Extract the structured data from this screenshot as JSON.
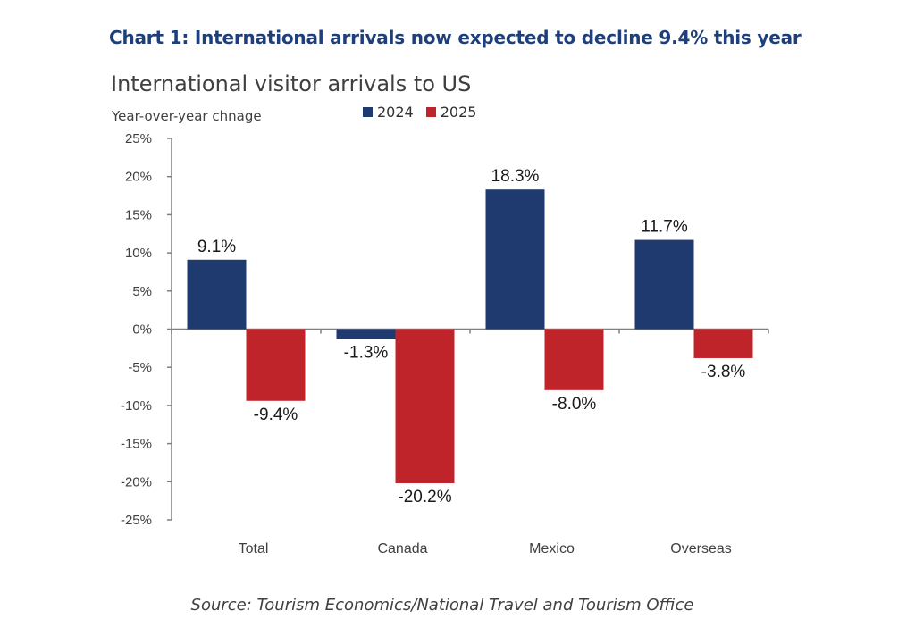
{
  "heading": "Chart 1: International arrivals now expected to decline 9.4% this year",
  "source": "Source: Tourism Economics/National Travel and Tourism Office",
  "colors": {
    "series_2024": "#1f3a6e",
    "series_2025": "#c0242b",
    "axis": "#7f7f7f"
  },
  "chart_data": {
    "type": "bar",
    "title": "International visitor arrivals to US",
    "ylabel": "Year-over-year chnage",
    "xlabel": "",
    "categories": [
      "Total",
      "Canada",
      "Mexico",
      "Overseas"
    ],
    "series": [
      {
        "name": "2024",
        "values": [
          9.1,
          -1.3,
          18.3,
          11.7
        ],
        "labels": [
          "9.1%",
          "-1.3%",
          "18.3%",
          "11.7%"
        ]
      },
      {
        "name": "2025",
        "values": [
          -9.4,
          -20.2,
          -8.0,
          -3.8
        ],
        "labels": [
          "-9.4%",
          "-20.2%",
          "-8.0%",
          "-3.8%"
        ]
      }
    ],
    "ylim": [
      -25,
      25
    ],
    "yticks": [
      25,
      20,
      15,
      10,
      5,
      0,
      -5,
      -10,
      -15,
      -20,
      -25
    ],
    "ytick_labels": [
      "25%",
      "20%",
      "15%",
      "10%",
      "5%",
      "0%",
      "-5%",
      "-10%",
      "-15%",
      "-20%",
      "-25%"
    ],
    "grid": false,
    "legend": "top"
  }
}
